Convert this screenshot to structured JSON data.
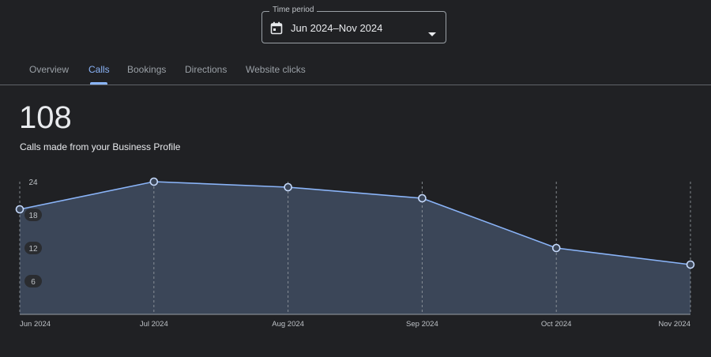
{
  "time_period": {
    "label": "Time period",
    "value": "Jun 2024–Nov 2024",
    "icon": "calendar-icon"
  },
  "tabs": [
    {
      "label": "Overview",
      "active": false
    },
    {
      "label": "Calls",
      "active": true
    },
    {
      "label": "Bookings",
      "active": false
    },
    {
      "label": "Directions",
      "active": false
    },
    {
      "label": "Website clicks",
      "active": false
    }
  ],
  "metric": {
    "value": "108",
    "caption": "Calls made from your Business Profile"
  },
  "colors": {
    "accent": "#8ab4f8",
    "area_fill": "#3b4658",
    "background": "#202124"
  },
  "chart_data": {
    "type": "area",
    "x": [
      "Jun 2024",
      "Jul 2024",
      "Aug 2024",
      "Sep 2024",
      "Oct 2024",
      "Nov 2024"
    ],
    "series": [
      {
        "values": [
          19,
          24,
          23,
          21,
          12,
          9
        ]
      }
    ],
    "y_ticks": [
      6,
      12,
      18,
      24
    ],
    "ylim": [
      0,
      24
    ],
    "grid": "vertical-dashed"
  }
}
